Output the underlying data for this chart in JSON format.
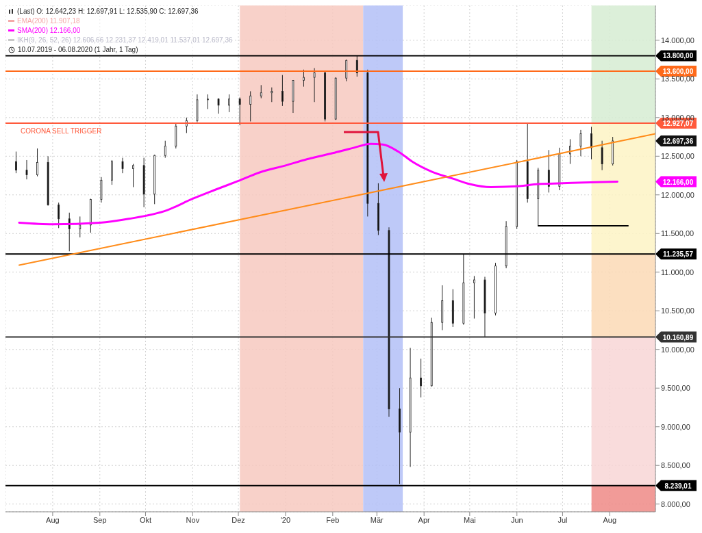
{
  "chart_data": {
    "type": "candlestick",
    "title": "(Last)  O: 12.642,23  H: 12.697,91  L: 12.535,90  C: 12.697,36",
    "subtitle": "10.07.2019 - 06.08.2020  (1 Jahr, 1 Tag)",
    "legend": "top left",
    "grid": true,
    "x": [
      "2019-07-08",
      "2019-07-15",
      "2019-07-22",
      "2019-07-29",
      "2019-08-05",
      "2019-08-12",
      "2019-08-19",
      "2019-08-26",
      "2019-09-02",
      "2019-09-09",
      "2019-09-16",
      "2019-09-23",
      "2019-09-30",
      "2019-10-07",
      "2019-10-14",
      "2019-10-21",
      "2019-10-28",
      "2019-11-04",
      "2019-11-11",
      "2019-11-18",
      "2019-11-25",
      "2019-12-02",
      "2019-12-09",
      "2019-12-16",
      "2019-12-23",
      "2019-12-30",
      "2020-01-06",
      "2020-01-13",
      "2020-01-20",
      "2020-01-27",
      "2020-02-03",
      "2020-02-10",
      "2020-02-17",
      "2020-02-24",
      "2020-03-02",
      "2020-03-09",
      "2020-03-16",
      "2020-03-23",
      "2020-03-30",
      "2020-04-06",
      "2020-04-13",
      "2020-04-20",
      "2020-04-27",
      "2020-05-04",
      "2020-05-11",
      "2020-05-18",
      "2020-05-25",
      "2020-06-01",
      "2020-06-08",
      "2020-06-15",
      "2020-06-22",
      "2020-06-29",
      "2020-07-06",
      "2020-07-13",
      "2020-07-20",
      "2020-07-27",
      "2020-08-03"
    ],
    "ohlc": [
      [
        12430,
        12560,
        12280,
        12320
      ],
      [
        12320,
        12450,
        12200,
        12260
      ],
      [
        12260,
        12600,
        12240,
        12420
      ],
      [
        12420,
        12500,
        11860,
        11870
      ],
      [
        11870,
        11900,
        11570,
        11690
      ],
      [
        11690,
        11770,
        11270,
        11560
      ],
      [
        11560,
        11720,
        11450,
        11610
      ],
      [
        11610,
        11950,
        11510,
        11940
      ],
      [
        11940,
        12230,
        11900,
        12190
      ],
      [
        12190,
        12450,
        12130,
        12430
      ],
      [
        12430,
        12480,
        12280,
        12340
      ],
      [
        12340,
        12400,
        12100,
        12380
      ],
      [
        12380,
        12480,
        11840,
        12010
      ],
      [
        12010,
        12520,
        11880,
        12510
      ],
      [
        12510,
        12700,
        12480,
        12630
      ],
      [
        12630,
        12920,
        12600,
        12890
      ],
      [
        12890,
        13000,
        12800,
        12960
      ],
      [
        12960,
        13300,
        12940,
        13230
      ],
      [
        13230,
        13300,
        13110,
        13240
      ],
      [
        13240,
        13250,
        13050,
        13160
      ],
      [
        13160,
        13300,
        13070,
        13240
      ],
      [
        13240,
        13260,
        12900,
        13170
      ],
      [
        13170,
        13340,
        12950,
        13280
      ],
      [
        13280,
        13420,
        13250,
        13320
      ],
      [
        13320,
        13390,
        13200,
        13340
      ],
      [
        13340,
        13550,
        13150,
        13210
      ],
      [
        13210,
        13480,
        13060,
        13480
      ],
      [
        13480,
        13620,
        13400,
        13520
      ],
      [
        13520,
        13640,
        13200,
        13580
      ],
      [
        13580,
        13600,
        12950,
        12980
      ],
      [
        12980,
        13520,
        12970,
        13510
      ],
      [
        13510,
        13750,
        13470,
        13740
      ],
      [
        13740,
        13800,
        13530,
        13580
      ],
      [
        13580,
        13620,
        11720,
        11890
      ],
      [
        11890,
        12150,
        11480,
        11540
      ],
      [
        11540,
        11580,
        9130,
        9230
      ],
      [
        9230,
        9500,
        8260,
        8930
      ],
      [
        8930,
        10020,
        8480,
        9630
      ],
      [
        9630,
        9880,
        9380,
        9530
      ],
      [
        9530,
        10410,
        9520,
        10350
      ],
      [
        10350,
        10830,
        10250,
        10630
      ],
      [
        10630,
        10780,
        10290,
        10340
      ],
      [
        10340,
        11230,
        10320,
        10860
      ],
      [
        10860,
        10950,
        10400,
        10900
      ],
      [
        10900,
        10940,
        10160,
        10470
      ],
      [
        10470,
        11120,
        10440,
        11080
      ],
      [
        11080,
        11660,
        11050,
        11590
      ],
      [
        11590,
        12450,
        11560,
        12430
      ],
      [
        12430,
        12930,
        11900,
        11950
      ],
      [
        11950,
        12350,
        11600,
        12320
      ],
      [
        12320,
        12580,
        12030,
        12110
      ],
      [
        12110,
        12610,
        12060,
        12530
      ],
      [
        12530,
        12720,
        12400,
        12630
      ],
      [
        12630,
        12840,
        12500,
        12790
      ],
      [
        12790,
        12880,
        12460,
        12610
      ],
      [
        12610,
        12700,
        12320,
        12400
      ],
      [
        12400,
        12750,
        12380,
        12697.36
      ]
    ],
    "series": [
      {
        "type": "line",
        "name": "SMA(200)  12.166,00",
        "color": "#ff00ff",
        "x": [
          "2019-07-10",
          "2019-08-01",
          "2019-09-01",
          "2019-09-20",
          "2019-10-15",
          "2019-11-01",
          "2019-11-15",
          "2019-12-01",
          "2019-12-15",
          "2020-01-01",
          "2020-01-15",
          "2020-02-01",
          "2020-02-15",
          "2020-02-26",
          "2020-03-05",
          "2020-03-15",
          "2020-03-25",
          "2020-04-06",
          "2020-04-20",
          "2020-05-01",
          "2020-05-15",
          "2020-06-01",
          "2020-06-15",
          "2020-07-01",
          "2020-07-15",
          "2020-08-06"
        ],
        "values": [
          11640,
          11620,
          11640,
          11690,
          11800,
          11950,
          12060,
          12180,
          12290,
          12380,
          12460,
          12540,
          12610,
          12660,
          12650,
          12560,
          12420,
          12300,
          12210,
          12140,
          12100,
          12110,
          12140,
          12150,
          12160,
          12170
        ]
      },
      {
        "type": "line",
        "color": "#ff8c1a",
        "x": [
          "2019-07-10",
          "2020-08-31"
        ],
        "values": [
          11090,
          12790
        ]
      },
      {
        "type": "line",
        "color": "#000000",
        "x": [
          "2020-06-15",
          "2020-08-13"
        ],
        "values": [
          11600,
          11600
        ]
      }
    ],
    "xlim": [
      "2019-07-01",
      "2020-08-31"
    ],
    "xticks": [
      {
        "value": "2019-08-01",
        "label": "Aug"
      },
      {
        "value": "2019-09-01",
        "label": "Sep"
      },
      {
        "value": "2019-10-01",
        "label": "Okt"
      },
      {
        "value": "2019-11-01",
        "label": "Nov"
      },
      {
        "value": "2019-12-01",
        "label": "Dez"
      },
      {
        "value": "2020-01-01",
        "label": "'20"
      },
      {
        "value": "2020-02-01",
        "label": "Feb"
      },
      {
        "value": "2020-03-01",
        "label": "Mär"
      },
      {
        "value": "2020-04-01",
        "label": "Apr"
      },
      {
        "value": "2020-05-01",
        "label": "Mai"
      },
      {
        "value": "2020-06-01",
        "label": "Jun"
      },
      {
        "value": "2020-07-01",
        "label": "Jul"
      },
      {
        "value": "2020-08-01",
        "label": "Aug"
      }
    ],
    "ylim": [
      7900,
      14450
    ],
    "yticks": [
      {
        "value": 8000,
        "label": "8.000,00"
      },
      {
        "value": 8500,
        "label": "8.500,00"
      },
      {
        "value": 9000,
        "label": "9.000,00"
      },
      {
        "value": 9500,
        "label": "9.500,00"
      },
      {
        "value": 10000,
        "label": "10.000,00"
      },
      {
        "value": 10500,
        "label": "10.500,00"
      },
      {
        "value": 11000,
        "label": "11.000,00"
      },
      {
        "value": 11500,
        "label": "11.500,00"
      },
      {
        "value": 12000,
        "label": "12.000,00"
      },
      {
        "value": 12500,
        "label": "12.500,00"
      },
      {
        "value": 13000,
        "label": "13.000,00"
      },
      {
        "value": 13500,
        "label": "13.500,00"
      },
      {
        "value": 14000,
        "label": "14.000,00"
      }
    ],
    "ref_lines": [
      {
        "axis": "y",
        "value": 13800,
        "label": "13.800,00",
        "color": "#000000"
      },
      {
        "axis": "y",
        "value": 13600,
        "label": "13.600,00",
        "color": "#ff6a1a"
      },
      {
        "axis": "y",
        "value": 12927.07,
        "label": "12.927,07",
        "color": "#ff5a3c"
      },
      {
        "axis": "y",
        "value": 11235.57,
        "label": "11.235,57",
        "color": "#000000"
      },
      {
        "axis": "y",
        "value": 10160.89,
        "label": "10.160,89",
        "color": "#333333"
      },
      {
        "axis": "y",
        "value": 8239.01,
        "label": "8.239,01",
        "color": "#000000"
      }
    ],
    "bands": [
      {
        "axis": "x",
        "from": "2019-12-02",
        "to": "2020-02-21",
        "color": "#f7c9c0"
      },
      {
        "axis": "x",
        "from": "2020-02-21",
        "to": "2020-03-18",
        "color": "#b3bff7"
      },
      {
        "axis": "y",
        "from": 12927.07,
        "to": 14450,
        "color": "#d6ecd2"
      },
      {
        "axis": "y",
        "from": 11235.57,
        "to": 12927.07,
        "color": "#fdf3c4"
      },
      {
        "axis": "y",
        "from": 10160.89,
        "to": 11235.57,
        "color": "#fbd9b5"
      },
      {
        "axis": "y",
        "from": 8239.01,
        "to": 10160.89,
        "color": "#f8d6d6"
      },
      {
        "axis": "y",
        "from": 7900,
        "to": 8239.01,
        "color": "#ee8a86"
      }
    ],
    "annotations": [
      {
        "text": "CORONA SELL TRIGGER",
        "x": "2019-07-10",
        "y": 12927.07
      },
      "12.697,36",
      "12.166,00",
      "EMA(200)  11.907,18",
      "IKH(9, 26, 52, 26)  12.606,66  12.231,37  12.419,01  11.537,01  12.697,36"
    ]
  }
}
